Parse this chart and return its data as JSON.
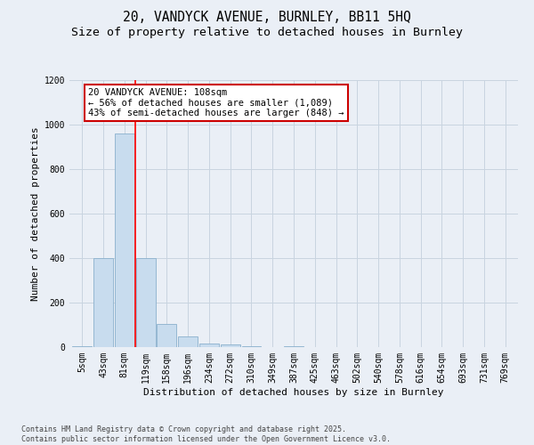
{
  "title_line1": "20, VANDYCK AVENUE, BURNLEY, BB11 5HQ",
  "title_line2": "Size of property relative to detached houses in Burnley",
  "xlabel": "Distribution of detached houses by size in Burnley",
  "ylabel": "Number of detached properties",
  "categories": [
    "5sqm",
    "43sqm",
    "81sqm",
    "119sqm",
    "158sqm",
    "196sqm",
    "234sqm",
    "272sqm",
    "310sqm",
    "349sqm",
    "387sqm",
    "425sqm",
    "463sqm",
    "502sqm",
    "540sqm",
    "578sqm",
    "616sqm",
    "654sqm",
    "693sqm",
    "731sqm",
    "769sqm"
  ],
  "values": [
    5,
    400,
    960,
    400,
    105,
    50,
    15,
    13,
    5,
    0,
    5,
    0,
    0,
    0,
    0,
    0,
    0,
    0,
    0,
    0,
    0
  ],
  "bar_color": "#c8dcee",
  "bar_edge_color": "#8ab0cc",
  "red_line_x": 2.5,
  "annotation_text": "20 VANDYCK AVENUE: 108sqm\n← 56% of detached houses are smaller (1,089)\n43% of semi-detached houses are larger (848) →",
  "annotation_box_facecolor": "#ffffff",
  "annotation_box_edgecolor": "#cc0000",
  "ylim": [
    0,
    1200
  ],
  "yticks": [
    0,
    200,
    400,
    600,
    800,
    1000,
    1200
  ],
  "grid_color": "#c8d4e0",
  "background_color": "#eaeff6",
  "footer_text": "Contains HM Land Registry data © Crown copyright and database right 2025.\nContains public sector information licensed under the Open Government Licence v3.0.",
  "title_fontsize": 10.5,
  "subtitle_fontsize": 9.5,
  "axis_label_fontsize": 8,
  "tick_fontsize": 7,
  "annotation_fontsize": 7.5,
  "footer_fontsize": 6
}
